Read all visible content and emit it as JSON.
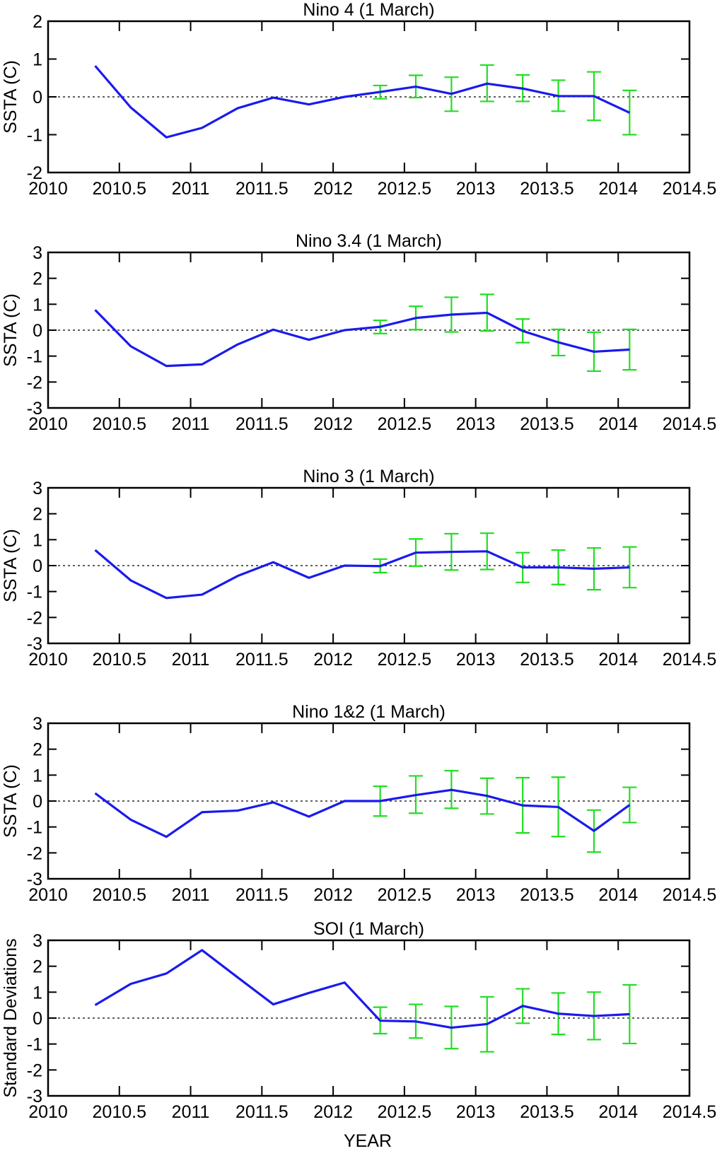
{
  "figure": {
    "xlabel": "YEAR"
  },
  "colors": {
    "observed": "#1a1aee",
    "forecast": "#22dd22",
    "zero_line": "#000000",
    "frame": "#000000"
  },
  "chart_data": [
    {
      "type": "line",
      "title": "Nino 4 (1 March)",
      "ylabel": "SSTA (C)",
      "xlim": [
        2010,
        2014.5
      ],
      "ylim": [
        -2,
        2
      ],
      "xticks": [
        2010,
        2010.5,
        2011,
        2011.5,
        2012,
        2012.5,
        2013,
        2013.5,
        2014,
        2014.5
      ],
      "xtick_labels": [
        "2010",
        "2010.5",
        "2011",
        "2011.5",
        "2012",
        "2012.5",
        "2013",
        "2013.5",
        "2014",
        "2014.5"
      ],
      "yticks": [
        -2,
        -1,
        0,
        1,
        2
      ],
      "ytick_labels": [
        "-2",
        "-1",
        "0",
        "1",
        "2"
      ],
      "zero_line": true,
      "series": [
        {
          "x": [
            2010.33,
            2010.58,
            2010.83,
            2011.08,
            2011.33,
            2011.58,
            2011.83,
            2012.08,
            2012.33,
            2012.58,
            2012.83,
            2013.08,
            2013.33,
            2013.58,
            2013.83,
            2014.08
          ],
          "y": [
            0.82,
            -0.28,
            -1.07,
            -0.82,
            -0.3,
            -0.02,
            -0.2,
            0.0,
            0.13,
            0.27,
            0.08,
            0.35,
            0.22,
            0.02,
            0.02,
            -0.42
          ]
        },
        {
          "x": [
            2012.33,
            2012.58,
            2012.83,
            2013.08,
            2013.33,
            2013.58,
            2013.83,
            2014.08
          ],
          "y": [
            0.13,
            0.27,
            0.08,
            0.35,
            0.22,
            0.02,
            0.02,
            -0.42
          ],
          "err_low": [
            -0.05,
            -0.02,
            -0.38,
            -0.12,
            -0.12,
            -0.38,
            -0.62,
            -1.0
          ],
          "err_high": [
            0.3,
            0.57,
            0.52,
            0.84,
            0.58,
            0.44,
            0.66,
            0.17
          ]
        }
      ]
    },
    {
      "type": "line",
      "title": "Nino 3.4 (1 March)",
      "ylabel": "SSTA (C)",
      "xlim": [
        2010,
        2014.5
      ],
      "ylim": [
        -3,
        3
      ],
      "xticks": [
        2010,
        2010.5,
        2011,
        2011.5,
        2012,
        2012.5,
        2013,
        2013.5,
        2014,
        2014.5
      ],
      "xtick_labels": [
        "2010",
        "2010.5",
        "2011",
        "2011.5",
        "2012",
        "2012.5",
        "2013",
        "2013.5",
        "2014",
        "2014.5"
      ],
      "yticks": [
        -3,
        -2,
        -1,
        0,
        1,
        2,
        3
      ],
      "ytick_labels": [
        "-3",
        "-2",
        "-1",
        "0",
        "1",
        "2",
        "3"
      ],
      "zero_line": true,
      "series": [
        {
          "x": [
            2010.33,
            2010.58,
            2010.83,
            2011.08,
            2011.33,
            2011.58,
            2011.83,
            2012.08,
            2012.33,
            2012.58,
            2012.83,
            2013.08,
            2013.33,
            2013.58,
            2013.83,
            2014.08
          ],
          "y": [
            0.78,
            -0.62,
            -1.38,
            -1.32,
            -0.55,
            0.02,
            -0.37,
            0.0,
            0.13,
            0.47,
            0.6,
            0.67,
            -0.03,
            -0.47,
            -0.83,
            -0.75
          ]
        },
        {
          "x": [
            2012.33,
            2012.58,
            2012.83,
            2013.08,
            2013.33,
            2013.58,
            2013.83,
            2014.08
          ],
          "y": [
            0.13,
            0.47,
            0.6,
            0.67,
            -0.03,
            -0.47,
            -0.83,
            -0.75
          ],
          "err_low": [
            -0.13,
            0.02,
            -0.07,
            -0.03,
            -0.48,
            -0.98,
            -1.58,
            -1.53
          ],
          "err_high": [
            0.38,
            0.92,
            1.27,
            1.38,
            0.43,
            0.03,
            -0.08,
            0.03
          ]
        }
      ]
    },
    {
      "type": "line",
      "title": "Nino 3 (1 March)",
      "ylabel": "SSTA (C)",
      "xlim": [
        2010,
        2014.5
      ],
      "ylim": [
        -3,
        3
      ],
      "xticks": [
        2010,
        2010.5,
        2011,
        2011.5,
        2012,
        2012.5,
        2013,
        2013.5,
        2014,
        2014.5
      ],
      "xtick_labels": [
        "2010",
        "2010.5",
        "2011",
        "2011.5",
        "2012",
        "2012.5",
        "2013",
        "2013.5",
        "2014",
        "2014.5"
      ],
      "yticks": [
        -3,
        -2,
        -1,
        0,
        1,
        2,
        3
      ],
      "ytick_labels": [
        "-3",
        "-2",
        "-1",
        "0",
        "1",
        "2",
        "3"
      ],
      "zero_line": true,
      "series": [
        {
          "x": [
            2010.33,
            2010.58,
            2010.83,
            2011.08,
            2011.33,
            2011.58,
            2011.83,
            2012.08,
            2012.33,
            2012.58,
            2012.83,
            2013.08,
            2013.33,
            2013.58,
            2013.83,
            2014.08
          ],
          "y": [
            0.6,
            -0.57,
            -1.25,
            -1.12,
            -0.4,
            0.13,
            -0.47,
            0.0,
            -0.02,
            0.5,
            0.53,
            0.55,
            -0.07,
            -0.07,
            -0.12,
            -0.07
          ]
        },
        {
          "x": [
            2012.33,
            2012.58,
            2012.83,
            2013.08,
            2013.33,
            2013.58,
            2013.83,
            2014.08
          ],
          "y": [
            -0.02,
            0.5,
            0.53,
            0.55,
            -0.07,
            -0.07,
            -0.12,
            -0.07
          ],
          "err_low": [
            -0.27,
            -0.02,
            -0.17,
            -0.15,
            -0.65,
            -0.73,
            -0.93,
            -0.85
          ],
          "err_high": [
            0.25,
            1.03,
            1.23,
            1.25,
            0.5,
            0.6,
            0.68,
            0.72
          ]
        }
      ]
    },
    {
      "type": "line",
      "title": "Nino 1&2 (1 March)",
      "ylabel": "SSTA (C)",
      "xlim": [
        2010,
        2014.5
      ],
      "ylim": [
        -3,
        3
      ],
      "xticks": [
        2010,
        2010.5,
        2011,
        2011.5,
        2012,
        2012.5,
        2013,
        2013.5,
        2014,
        2014.5
      ],
      "xtick_labels": [
        "2010",
        "2010.5",
        "2011",
        "2011.5",
        "2012",
        "2012.5",
        "2013",
        "2013.5",
        "2014",
        "2014.5"
      ],
      "yticks": [
        -3,
        -2,
        -1,
        0,
        1,
        2,
        3
      ],
      "ytick_labels": [
        "-3",
        "-2",
        "-1",
        "0",
        "1",
        "2",
        "3"
      ],
      "zero_line": true,
      "series": [
        {
          "x": [
            2010.33,
            2010.58,
            2010.83,
            2011.08,
            2011.33,
            2011.58,
            2011.83,
            2012.08,
            2012.33,
            2012.58,
            2012.83,
            2013.08,
            2013.33,
            2013.58,
            2013.83,
            2014.08
          ],
          "y": [
            0.3,
            -0.72,
            -1.38,
            -0.43,
            -0.37,
            -0.05,
            -0.6,
            0.0,
            0.0,
            0.23,
            0.43,
            0.2,
            -0.17,
            -0.23,
            -1.15,
            -0.15
          ]
        },
        {
          "x": [
            2012.33,
            2012.58,
            2012.83,
            2013.08,
            2013.33,
            2013.58,
            2013.83,
            2014.08
          ],
          "y": [
            0.0,
            0.23,
            0.43,
            0.2,
            -0.17,
            -0.23,
            -1.15,
            -0.15
          ],
          "err_low": [
            -0.58,
            -0.47,
            -0.28,
            -0.5,
            -1.23,
            -1.37,
            -1.97,
            -0.83
          ],
          "err_high": [
            0.57,
            0.97,
            1.17,
            0.88,
            0.9,
            0.92,
            -0.35,
            0.53
          ]
        }
      ]
    },
    {
      "type": "line",
      "title": "SOI (1 March)",
      "ylabel": "Standard Deviations",
      "xlim": [
        2010,
        2014.5
      ],
      "ylim": [
        -3,
        3
      ],
      "xticks": [
        2010,
        2010.5,
        2011,
        2011.5,
        2012,
        2012.5,
        2013,
        2013.5,
        2014,
        2014.5
      ],
      "xtick_labels": [
        "2010",
        "2010.5",
        "2011",
        "2011.5",
        "2012",
        "2012.5",
        "2013",
        "2013.5",
        "2014",
        "2014.5"
      ],
      "yticks": [
        -3,
        -2,
        -1,
        0,
        1,
        2,
        3
      ],
      "ytick_labels": [
        "-3",
        "-2",
        "-1",
        "0",
        "1",
        "2",
        "3"
      ],
      "zero_line": true,
      "series": [
        {
          "x": [
            2010.33,
            2010.58,
            2010.83,
            2011.08,
            2011.33,
            2011.58,
            2011.83,
            2012.08,
            2012.33,
            2012.58,
            2012.83,
            2013.08,
            2013.33,
            2013.58,
            2013.83,
            2014.08
          ],
          "y": [
            0.5,
            1.32,
            1.72,
            2.62,
            1.57,
            0.53,
            0.97,
            1.37,
            -0.1,
            -0.13,
            -0.37,
            -0.23,
            0.47,
            0.17,
            0.08,
            0.15
          ]
        },
        {
          "x": [
            2012.33,
            2012.58,
            2012.83,
            2013.08,
            2013.33,
            2013.58,
            2013.83,
            2014.08
          ],
          "y": [
            -0.1,
            -0.13,
            -0.37,
            -0.23,
            0.47,
            0.17,
            0.08,
            0.15
          ],
          "err_low": [
            -0.6,
            -0.77,
            -1.18,
            -1.3,
            -0.2,
            -0.63,
            -0.83,
            -0.98
          ],
          "err_high": [
            0.42,
            0.53,
            0.45,
            0.82,
            1.13,
            0.97,
            1.0,
            1.28
          ]
        }
      ]
    }
  ]
}
